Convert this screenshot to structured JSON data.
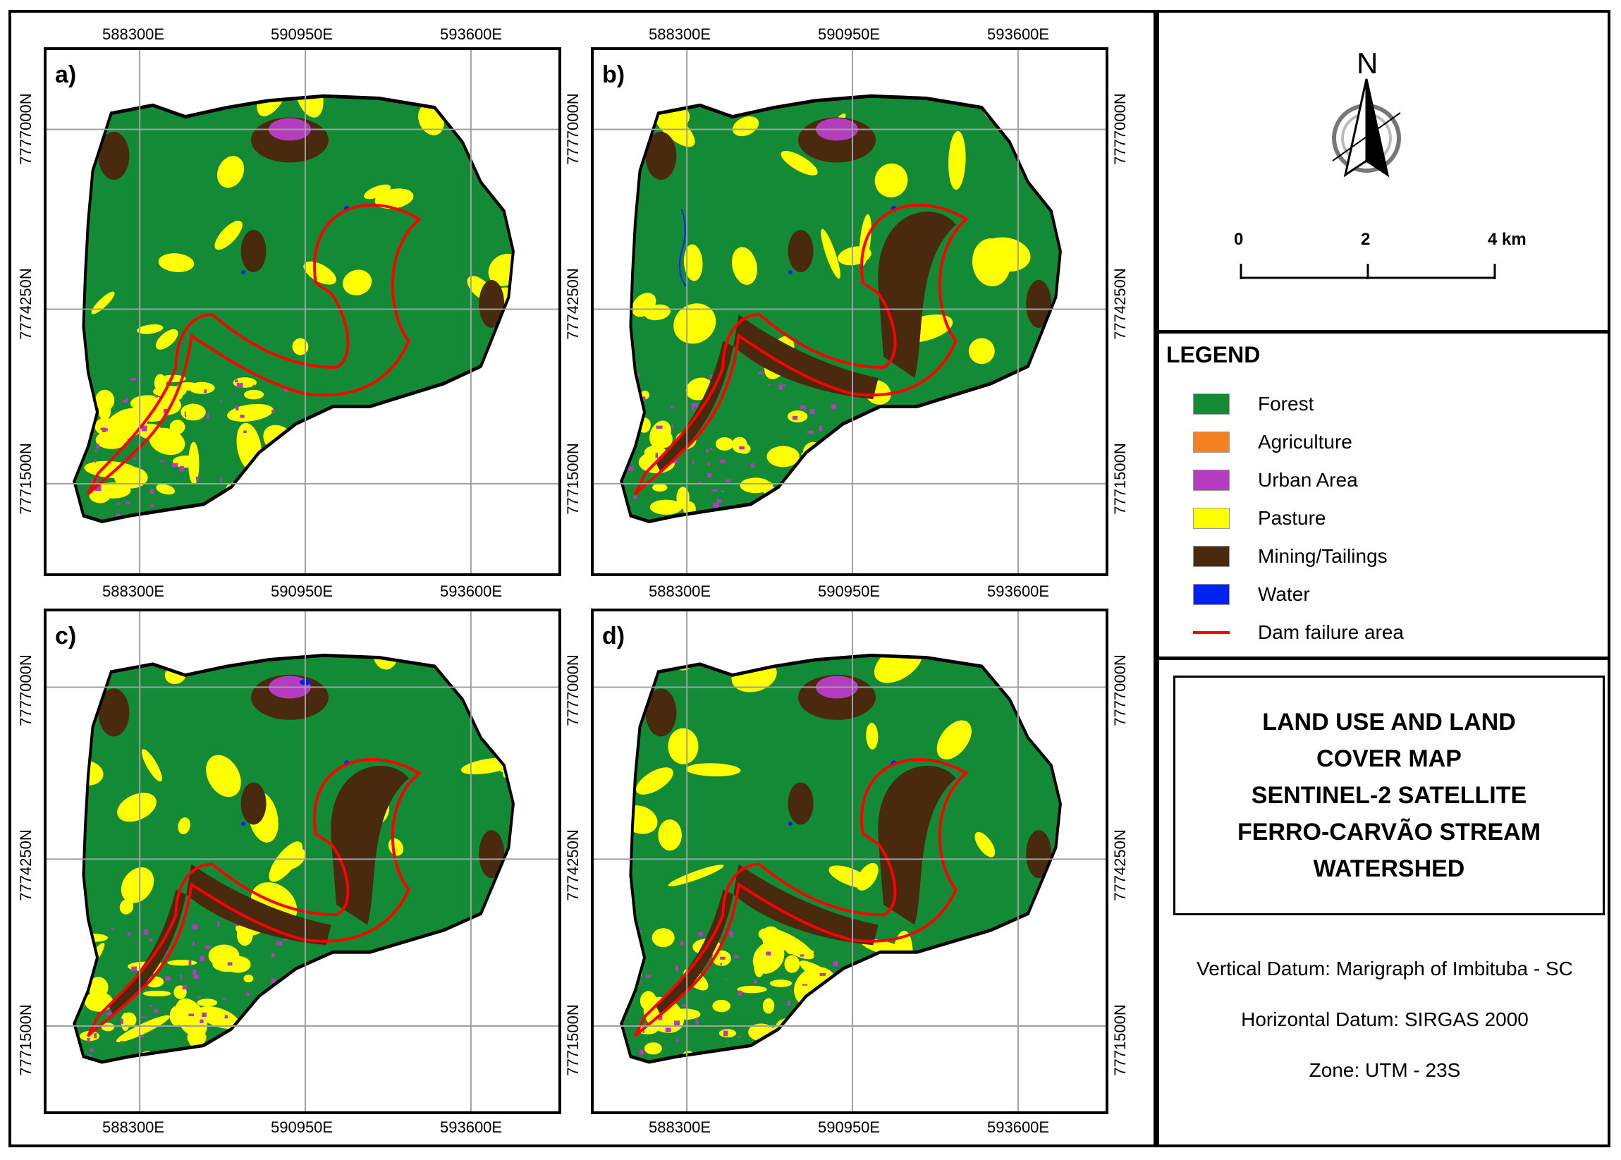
{
  "panels": [
    {
      "label": "a)",
      "variant": "a"
    },
    {
      "label": "b)",
      "variant": "b"
    },
    {
      "label": "c)",
      "variant": "c"
    },
    {
      "label": "d)",
      "variant": "d"
    }
  ],
  "easting_labels": [
    "588300E",
    "590950E",
    "593600E"
  ],
  "northing_labels": [
    "7777000N",
    "7774250N",
    "7771500N"
  ],
  "north_arrow": {
    "label": "N",
    "icon": "north-arrow-icon"
  },
  "scale_bar": {
    "labels": [
      "0",
      "2",
      "4 km"
    ]
  },
  "legend": {
    "title": "LEGEND",
    "items": [
      {
        "label": "Forest",
        "color": "#138b36",
        "kind": "fill"
      },
      {
        "label": "Agriculture",
        "color": "#f5821f",
        "kind": "fill"
      },
      {
        "label": "Urban Area",
        "color": "#b43cbe",
        "kind": "fill"
      },
      {
        "label": "Pasture",
        "color": "#ffff00",
        "kind": "fill"
      },
      {
        "label": "Mining/Tailings",
        "color": "#4a2a0e",
        "kind": "fill"
      },
      {
        "label": "Water",
        "color": "#0021f3",
        "kind": "fill"
      },
      {
        "label": "Dam failure area",
        "color": "#ff0000",
        "kind": "line"
      }
    ]
  },
  "title": {
    "lines": [
      "LAND USE AND LAND",
      "COVER MAP",
      "SENTINEL-2 SATELLITE",
      "FERRO-CARVÃO STREAM",
      "WATERSHED"
    ]
  },
  "info": {
    "vertical_datum": "Vertical Datum: Marigraph of Imbituba - SC",
    "horizontal_datum": "Horizontal Datum: SIRGAS 2000",
    "zone": "Zone: UTM - 23S"
  }
}
